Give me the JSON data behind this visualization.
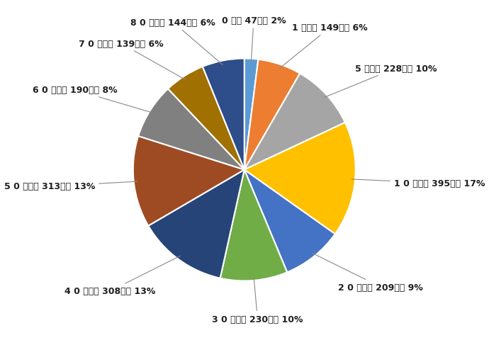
{
  "labels": [
    "0歳",
    "1歳～",
    "5歳～",
    "10歳～",
    "20歳～",
    "30歳～",
    "40歳～",
    "50歳～",
    "60歳～",
    "70歳～",
    "80歳～"
  ],
  "values": [
    47,
    149,
    228,
    395,
    209,
    230,
    308,
    313,
    190,
    139,
    144
  ],
  "colors": [
    "#5B9BD5",
    "#ED7D31",
    "#A5A5A5",
    "#FFC000",
    "#4472C4",
    "#70AD47",
    "#264478",
    "#9E4B23",
    "#808080",
    "#A07000",
    "#2E4D8B"
  ],
  "label_texts": [
    "0 歳， 47人， 2%",
    "1 歳～， 149人， 6%",
    "5 歳～， 228人， 10%",
    "1 0 歳～， 395人， 17%",
    "2 0 歳～， 209人， 9%",
    "3 0 歳～， 230人， 10%",
    "4 0 歳～， 308人， 13%",
    "5 0 歳～， 313人， 13%",
    "6 0 歳～， 190人， 8%",
    "7 0 歳～， 139人， 6%",
    "8 0 歳～， 144人， 6%"
  ],
  "background_color": "#FFFFFF",
  "figsize": [
    6.9,
    4.81
  ],
  "dpi": 100
}
